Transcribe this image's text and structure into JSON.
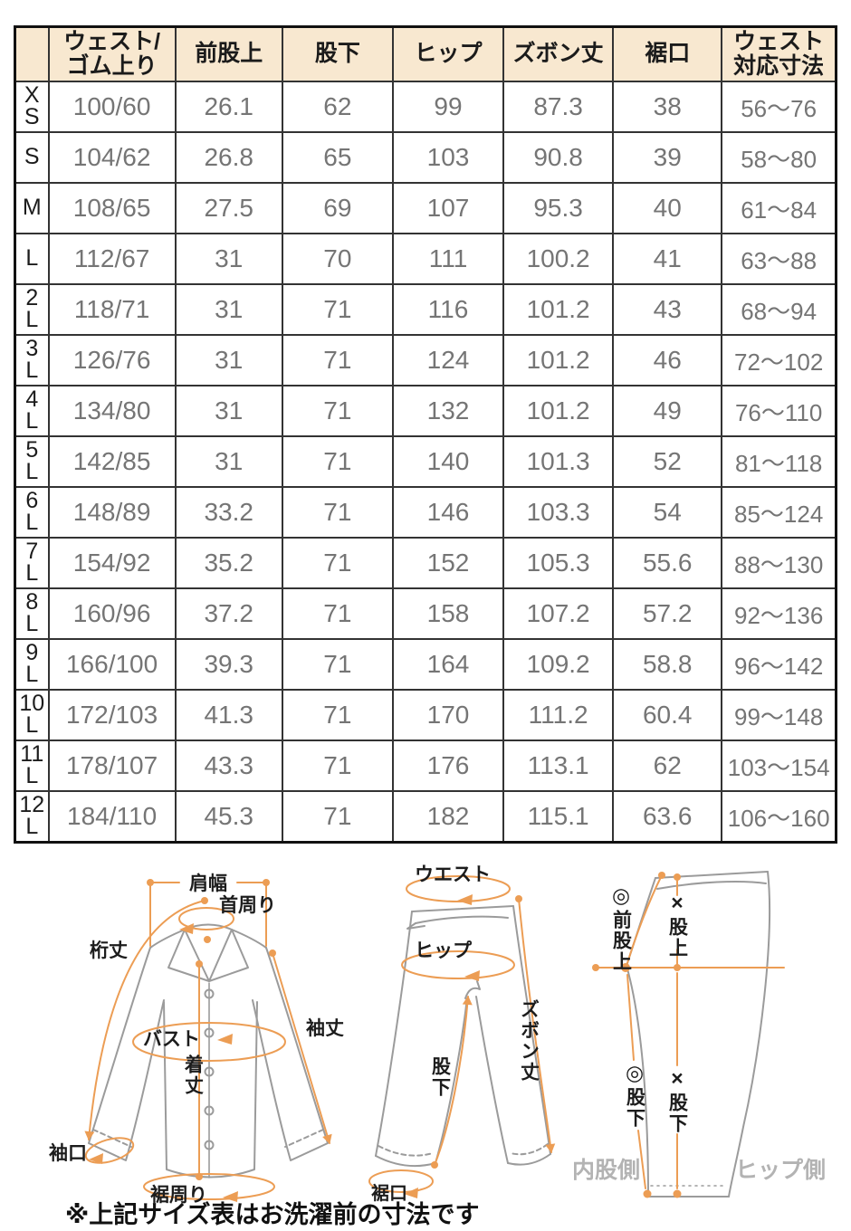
{
  "colors": {
    "header_bg": "#F8E8D0",
    "accent_orange": "#EC9D54",
    "outline_gray": "#9b9b9b",
    "value_text": "#757575",
    "side_label_gray": "#b3b3b3"
  },
  "table": {
    "headers": [
      "",
      "ウェスト/\nゴム上り",
      "前股上",
      "股下",
      "ヒップ",
      "ズボン丈",
      "裾口",
      "ウェスト\n対応寸法"
    ],
    "rows": [
      [
        "X\nS",
        "100/60",
        "26.1",
        "62",
        "99",
        "87.3",
        "38",
        "56〜76"
      ],
      [
        "S",
        "104/62",
        "26.8",
        "65",
        "103",
        "90.8",
        "39",
        "58〜80"
      ],
      [
        "M",
        "108/65",
        "27.5",
        "69",
        "107",
        "95.3",
        "40",
        "61〜84"
      ],
      [
        "L",
        "112/67",
        "31",
        "70",
        "111",
        "100.2",
        "41",
        "63〜88"
      ],
      [
        "2\nL",
        "118/71",
        "31",
        "71",
        "116",
        "101.2",
        "43",
        "68〜94"
      ],
      [
        "3\nL",
        "126/76",
        "31",
        "71",
        "124",
        "101.2",
        "46",
        "72〜102"
      ],
      [
        "4\nL",
        "134/80",
        "31",
        "71",
        "132",
        "101.2",
        "49",
        "76〜110"
      ],
      [
        "5\nL",
        "142/85",
        "31",
        "71",
        "140",
        "101.3",
        "52",
        "81〜118"
      ],
      [
        "6\nL",
        "148/89",
        "33.2",
        "71",
        "146",
        "103.3",
        "54",
        "85〜124"
      ],
      [
        "7\nL",
        "154/92",
        "35.2",
        "71",
        "152",
        "105.3",
        "55.6",
        "88〜130"
      ],
      [
        "8\nL",
        "160/96",
        "37.2",
        "71",
        "158",
        "107.2",
        "57.2",
        "92〜136"
      ],
      [
        "9\nL",
        "166/100",
        "39.3",
        "71",
        "164",
        "109.2",
        "58.8",
        "96〜142"
      ],
      [
        "10\nL",
        "172/103",
        "41.3",
        "71",
        "170",
        "111.2",
        "60.4",
        "99〜148"
      ],
      [
        "11\nL",
        "178/107",
        "43.3",
        "71",
        "176",
        "113.1",
        "62",
        "103〜154"
      ],
      [
        "12\nL",
        "184/110",
        "45.3",
        "71",
        "182",
        "115.1",
        "63.6",
        "106〜160"
      ]
    ]
  },
  "diagrams": {
    "shirt": {
      "shoulder_width": "肩幅",
      "neck": "首周り",
      "sleeve_total": "桁丈",
      "bust": "バスト",
      "sleeve_length": "袖丈",
      "body_length": "着丈",
      "cuff": "袖口",
      "hem_circumference": "裾周り"
    },
    "pants_front": {
      "waist": "ウエスト",
      "hip": "ヒップ",
      "pants_length": "ズボン丈",
      "inseam": "股下",
      "hem": "裾口"
    },
    "pants_side": {
      "front_rise_mark": "◎",
      "front_rise": "前股上",
      "rise_mark": "×",
      "rise": "股上",
      "inseam_a_mark": "◎",
      "inseam_a": "股下",
      "inseam_b_mark": "×",
      "inseam_b": "股下",
      "inner_label": "内股側",
      "hip_label": "ヒップ側"
    }
  },
  "note": "※上記サイズ表はお洗濯前の寸法です"
}
